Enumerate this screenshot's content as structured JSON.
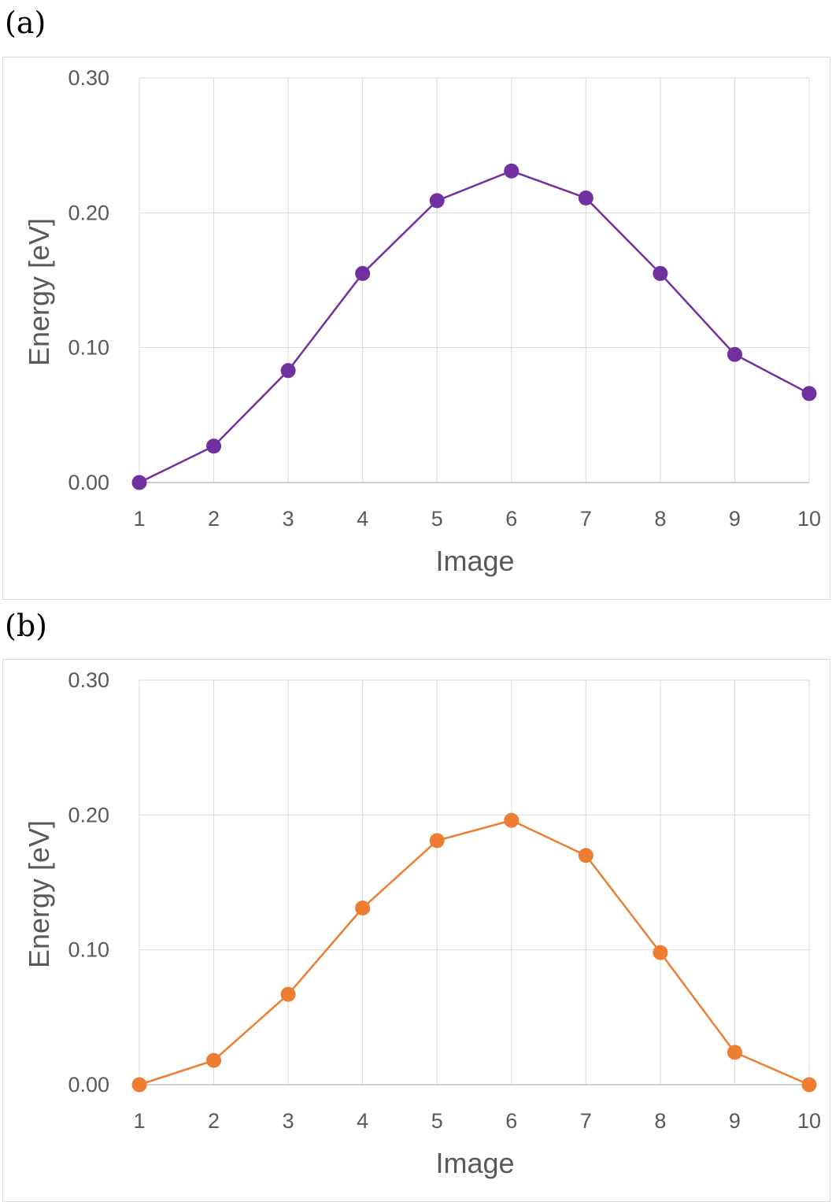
{
  "chart_data": [
    {
      "panel": "(a)",
      "type": "line",
      "xlabel": "Image",
      "ylabel": "Energy [eV]",
      "ylim": [
        0,
        0.3
      ],
      "yticks": [
        "0.00",
        "0.10",
        "0.20",
        "0.30"
      ],
      "categories": [
        "1",
        "2",
        "3",
        "4",
        "5",
        "6",
        "7",
        "8",
        "9",
        "10"
      ],
      "series": [
        {
          "values": [
            0.0,
            0.027,
            0.083,
            0.155,
            0.209,
            0.231,
            0.211,
            0.155,
            0.095,
            0.066
          ],
          "color": "#7030a0"
        }
      ],
      "grid": true
    },
    {
      "panel": "(b)",
      "type": "line",
      "xlabel": "Image",
      "ylabel": "Energy [eV]",
      "ylim": [
        0,
        0.3
      ],
      "yticks": [
        "0.00",
        "0.10",
        "0.20",
        "0.30"
      ],
      "categories": [
        "1",
        "2",
        "3",
        "4",
        "5",
        "6",
        "7",
        "8",
        "9",
        "10"
      ],
      "series": [
        {
          "values": [
            0.0,
            0.018,
            0.067,
            0.131,
            0.181,
            0.196,
            0.17,
            0.098,
            0.024,
            0.0
          ],
          "color": "#ed7d31"
        }
      ],
      "grid": true
    }
  ]
}
